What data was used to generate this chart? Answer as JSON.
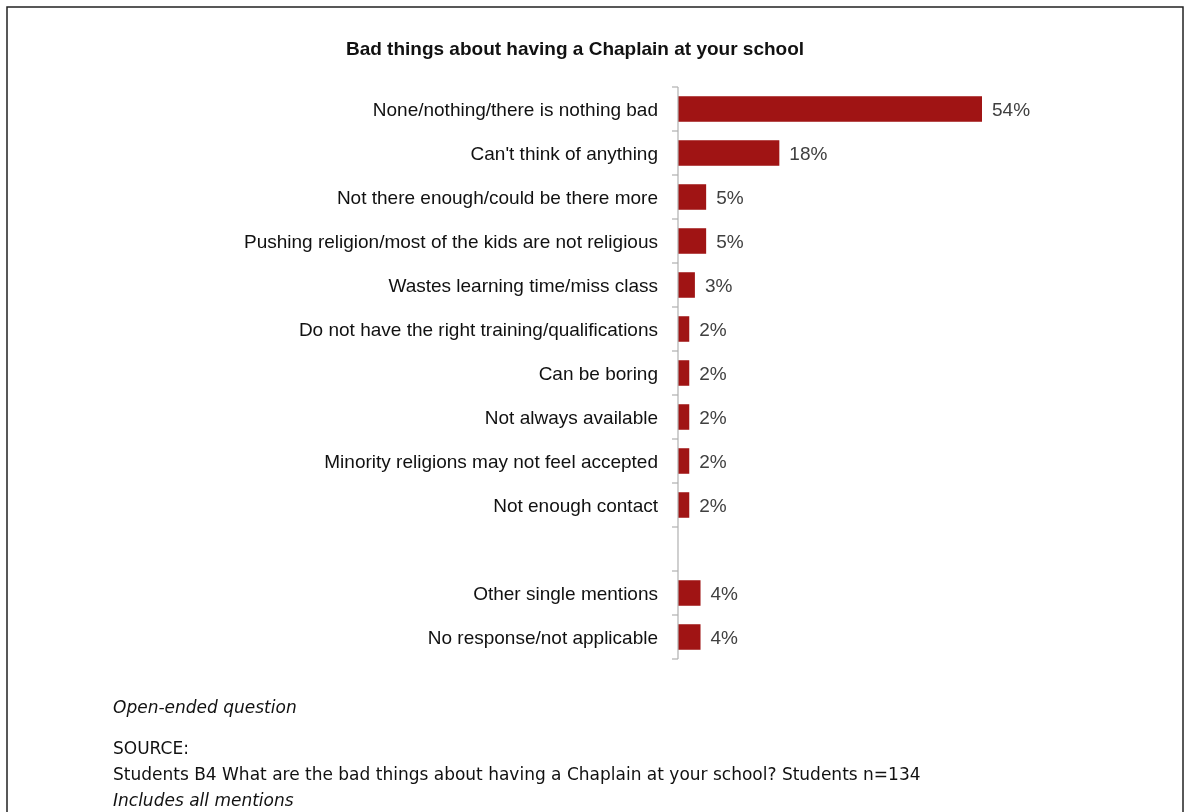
{
  "chart_data": {
    "type": "bar",
    "orientation": "horizontal",
    "title": "Bad things about having a Chaplain at your school",
    "categories": [
      "None/nothing/there is nothing bad",
      "Can't think of anything",
      "Not there enough/could be there more",
      "Pushing religion/most of the kids are not religious",
      "Wastes learning time/miss class",
      "Do not have the right training/qualifications",
      "Can be boring",
      "Not always available",
      "Minority religions may not feel accepted",
      "Not enough contact",
      null,
      "Other single mentions",
      "No response/not applicable"
    ],
    "values": [
      54,
      18,
      5,
      5,
      3,
      2,
      2,
      2,
      2,
      2,
      null,
      4,
      4
    ],
    "value_labels": [
      "54%",
      "18%",
      "5%",
      "5%",
      "3%",
      "2%",
      "2%",
      "2%",
      "2%",
      "2%",
      null,
      "4%",
      "4%"
    ],
    "color": "#a01414",
    "annotations": [
      "Open-ended question",
      "SOURCE:",
      "Students B4 What are the bad things about having a Chaplain at your school? Students n=134",
      "Includes all mentions"
    ]
  }
}
